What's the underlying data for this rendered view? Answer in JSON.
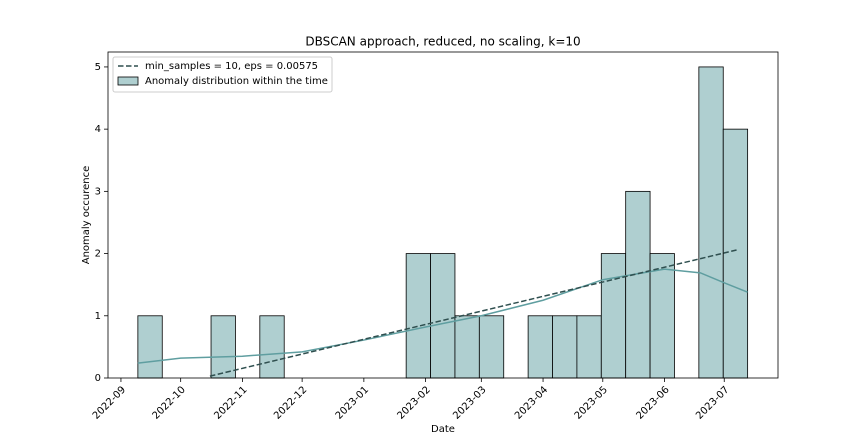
{
  "chart_data": {
    "type": "histogram",
    "title": "DBSCAN approach, reduced, no scaling, k=10",
    "xlabel": "Date",
    "ylabel": "Anomaly occurence",
    "name": "Anomaly distribution within the time",
    "color": "#afcfd0",
    "edgecolor": "#000000",
    "bins": [
      8.5,
      20.75,
      33,
      45.25,
      57.5,
      69.75,
      82,
      94.25,
      106.5,
      118.75,
      131,
      143.25,
      155.5,
      167.75,
      180,
      192.25,
      204.5,
      216.75,
      229,
      241.25,
      253.5,
      265.75,
      278,
      290.25,
      302.5,
      314.75
    ],
    "counts": [
      1,
      0,
      0,
      1,
      0,
      1,
      0,
      0,
      0,
      0,
      0,
      2,
      2,
      1,
      1,
      0,
      1,
      1,
      1,
      2,
      3,
      2,
      0,
      5,
      4
    ],
    "kde": {
      "color": "#5f9ea0",
      "x": [
        8.5,
        30,
        61,
        91,
        122,
        153,
        181,
        212,
        242,
        273,
        291,
        303,
        314.75
      ],
      "values": [
        0.24,
        0.32,
        0.35,
        0.42,
        0.61,
        0.82,
        1.0,
        1.25,
        1.58,
        1.75,
        1.69,
        1.53,
        1.38
      ]
    },
    "lines": [
      {
        "name": "min_samples = 10, eps = 0.00575",
        "color": "#2f4f4f",
        "dashed": true,
        "x": [
          44.7,
          309.5
        ],
        "values": [
          0.03,
          2.06
        ]
      }
    ],
    "xlim": [
      -6.5,
      330
    ],
    "ylim": [
      0,
      5.24
    ],
    "xticks": [
      {
        "value": 0,
        "label": "2022-09"
      },
      {
        "value": 30,
        "label": "2022-10"
      },
      {
        "value": 61,
        "label": "2022-11"
      },
      {
        "value": 91,
        "label": "2022-12"
      },
      {
        "value": 122,
        "label": "2023-01"
      },
      {
        "value": 153,
        "label": "2023-02"
      },
      {
        "value": 181,
        "label": "2023-03"
      },
      {
        "value": 212,
        "label": "2023-04"
      },
      {
        "value": 242,
        "label": "2023-05"
      },
      {
        "value": 273,
        "label": "2023-06"
      },
      {
        "value": 303,
        "label": "2023-07"
      }
    ],
    "yticks": [
      0,
      1,
      2,
      3,
      4,
      5
    ],
    "legend": "upper left"
  }
}
